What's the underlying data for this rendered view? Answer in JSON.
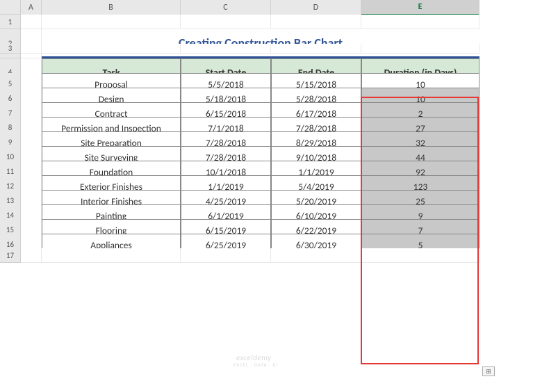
{
  "columns": [
    "A",
    "B",
    "C",
    "D",
    "E"
  ],
  "column_widths": {
    "rowhdr": 30,
    "A": 30,
    "B": 200,
    "C": 130,
    "D": 130,
    "E": 170
  },
  "title": "Creating Construction Bar Chart",
  "title_color": "#2f5496",
  "title_underline_color": "#2f5496",
  "headers": {
    "task": "Task",
    "start": "Start Date",
    "end": "End Date",
    "duration": "Duration (in Days)"
  },
  "header_bg": "#d6e8d6",
  "header_border": "#888888",
  "rows": [
    {
      "task": "Proposal",
      "start": "5/5/2018",
      "end": "5/15/2018",
      "duration": "10"
    },
    {
      "task": "Design",
      "start": "5/18/2018",
      "end": "5/28/2018",
      "duration": "10"
    },
    {
      "task": "Contract",
      "start": "6/15/2018",
      "end": "6/17/2018",
      "duration": "2"
    },
    {
      "task": "Permission and Inspection",
      "start": "7/1/2018",
      "end": "7/28/2018",
      "duration": "27"
    },
    {
      "task": "Site Preparation",
      "start": "7/28/2018",
      "end": "8/29/2018",
      "duration": "32"
    },
    {
      "task": "Site Surveying",
      "start": "7/28/2018",
      "end": "9/10/2018",
      "duration": "44"
    },
    {
      "task": "Foundation",
      "start": "10/1/2018",
      "end": "1/1/2019",
      "duration": "92"
    },
    {
      "task": "Exterior Finishes",
      "start": "1/1/2019",
      "end": "5/4/2019",
      "duration": "123"
    },
    {
      "task": "Interior Finishes",
      "start": "4/25/2019",
      "end": "5/20/2019",
      "duration": "25"
    },
    {
      "task": "Painting",
      "start": "6/1/2019",
      "end": "6/10/2019",
      "duration": "9"
    },
    {
      "task": "Flooring",
      "start": "6/15/2019",
      "end": "6/22/2019",
      "duration": "7"
    },
    {
      "task": "Appliances",
      "start": "6/25/2019",
      "end": "6/30/2019",
      "duration": "5"
    }
  ],
  "duration_bg_shaded": "#c8c8c8",
  "duration_bg_first": "#ffffff",
  "highlight_border_color": "#e53935",
  "row_header_bg": "#e8e8e8",
  "selected_col": "E",
  "watermark": "exceldemy",
  "watermark_sub": "EXCEL · DATA · BI",
  "row_heights": {
    "default": 32,
    "title": 42,
    "header": 40,
    "thin": 21
  },
  "visible_rows": 17
}
